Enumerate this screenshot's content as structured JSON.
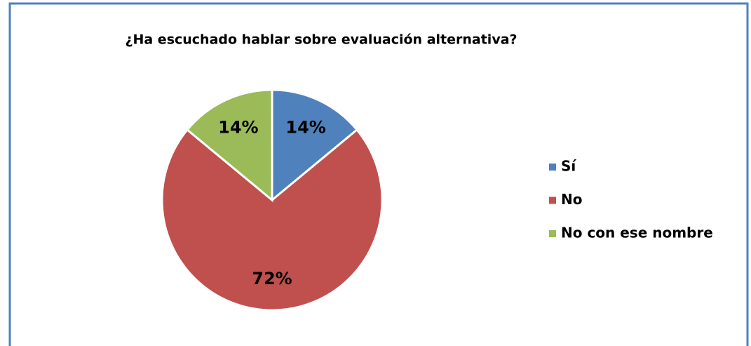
{
  "chart_data": {
    "type": "pie",
    "title": "¿Ha escuchado hablar sobre evaluación alternativa?",
    "categories": [
      "Sí",
      "No",
      "No con ese nombre"
    ],
    "values": [
      14,
      72,
      14
    ],
    "value_labels": [
      "14%",
      "72%",
      "14%"
    ],
    "colors": [
      "#4f81bd",
      "#c0504d",
      "#9bbb59"
    ],
    "legend": "right"
  }
}
